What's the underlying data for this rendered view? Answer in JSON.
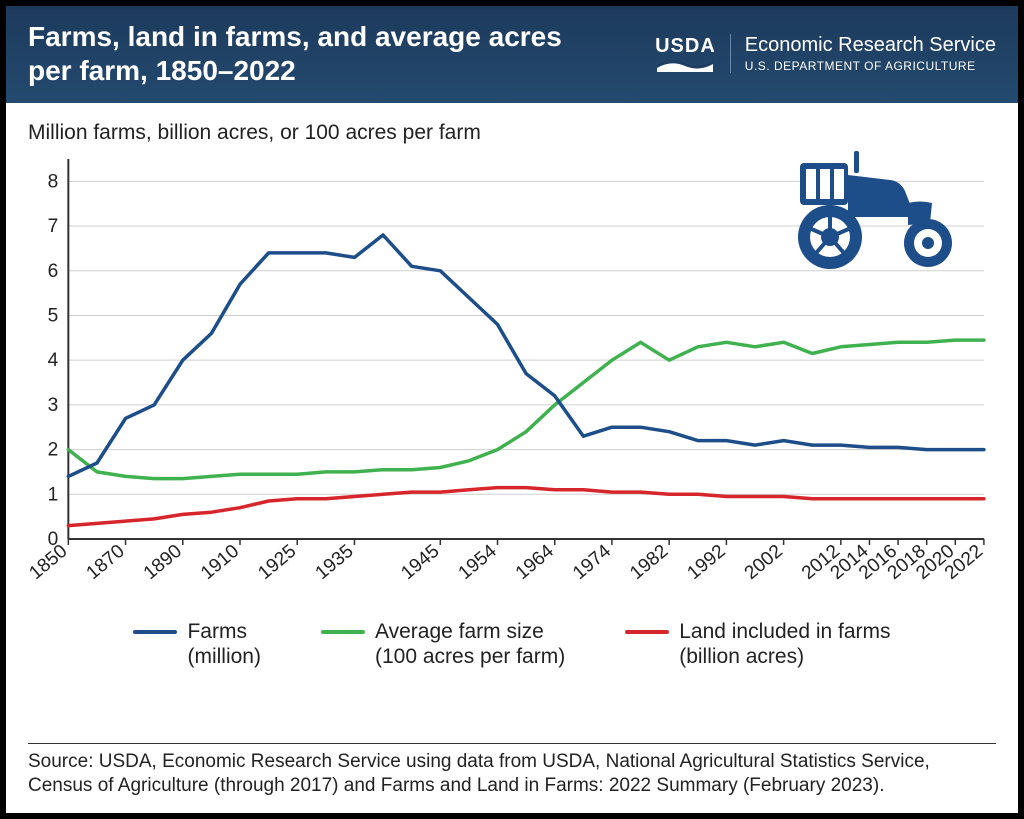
{
  "header": {
    "title": "Farms, land in farms, and average acres per farm, 1850–2022",
    "usda_text": "USDA",
    "ers_line1": "Economic Research Service",
    "ers_line2": "U.S. DEPARTMENT OF AGRICULTURE"
  },
  "chart": {
    "type": "line",
    "y_title": "Million farms, billion acres, or 100 acres per farm",
    "ylim": [
      0,
      8.5
    ],
    "yticks": [
      0,
      1,
      2,
      3,
      4,
      5,
      6,
      7,
      8
    ],
    "x_labels": [
      "1850",
      "1870",
      "1890",
      "1910",
      "1925",
      "1935",
      "1945",
      "1954",
      "1964",
      "1974",
      "1982",
      "1992",
      "2002",
      "2012",
      "2014",
      "2016",
      "2018",
      "2020",
      "2022"
    ],
    "background_color": "#ffffff",
    "axis_color": "#333333",
    "grid_color": "#cfcfcf",
    "line_width": 3.5,
    "tick_fontsize": 19,
    "series": {
      "farms": {
        "color": "#1d4e89",
        "values": [
          1.4,
          1.7,
          2.7,
          3.0,
          4.0,
          4.6,
          5.7,
          6.4,
          6.4,
          6.4,
          6.3,
          6.8,
          6.1,
          6.0,
          5.4,
          4.8,
          3.7,
          3.2,
          2.3,
          2.5,
          2.5,
          2.4,
          2.2,
          2.2,
          2.1,
          2.2,
          2.1,
          2.1,
          2.05,
          2.05,
          2.0,
          2.0,
          2.0
        ],
        "legend_line1": "Farms",
        "legend_line2": "(million)"
      },
      "avg_size": {
        "color": "#3fb24f",
        "values": [
          2.0,
          1.5,
          1.4,
          1.35,
          1.35,
          1.4,
          1.45,
          1.45,
          1.45,
          1.5,
          1.5,
          1.55,
          1.55,
          1.6,
          1.75,
          2.0,
          2.4,
          3.0,
          3.5,
          4.0,
          4.4,
          4.0,
          4.3,
          4.4,
          4.3,
          4.4,
          4.15,
          4.3,
          4.35,
          4.4,
          4.4,
          4.45,
          4.45
        ],
        "legend_line1": "Average farm size",
        "legend_line2": "(100 acres per farm)"
      },
      "land": {
        "color": "#d7262b",
        "values": [
          0.3,
          0.35,
          0.4,
          0.45,
          0.55,
          0.6,
          0.7,
          0.85,
          0.9,
          0.9,
          0.95,
          1.0,
          1.05,
          1.05,
          1.1,
          1.15,
          1.15,
          1.1,
          1.1,
          1.05,
          1.05,
          1.0,
          1.0,
          0.95,
          0.95,
          0.95,
          0.9,
          0.9,
          0.9,
          0.9,
          0.9,
          0.9,
          0.9
        ],
        "legend_line1": "Land included in farms",
        "legend_line2": "(billion acres)"
      }
    },
    "x_positions_count": 33,
    "xlabel_indices": [
      0,
      2,
      4,
      6,
      8,
      10,
      13,
      15,
      17,
      19,
      21,
      23,
      25,
      27,
      28,
      29,
      30,
      31,
      32
    ]
  },
  "source": "Source: USDA, Economic Research Service using data from USDA, National Agricultural Statistics Service, Census of Agriculture (through 2017) and Farms and Land in Farms: 2022 Summary (February 2023).",
  "colors": {
    "header_bg": "#1d3a5c"
  }
}
